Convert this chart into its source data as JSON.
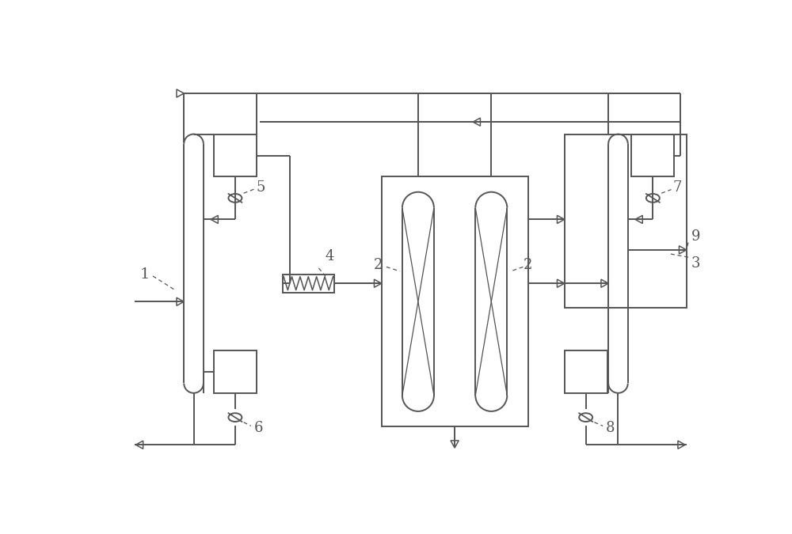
{
  "bg_color": "#ffffff",
  "line_color": "#555555",
  "line_width": 1.4,
  "fig_width": 10.0,
  "fig_height": 6.75,
  "dpi": 100
}
